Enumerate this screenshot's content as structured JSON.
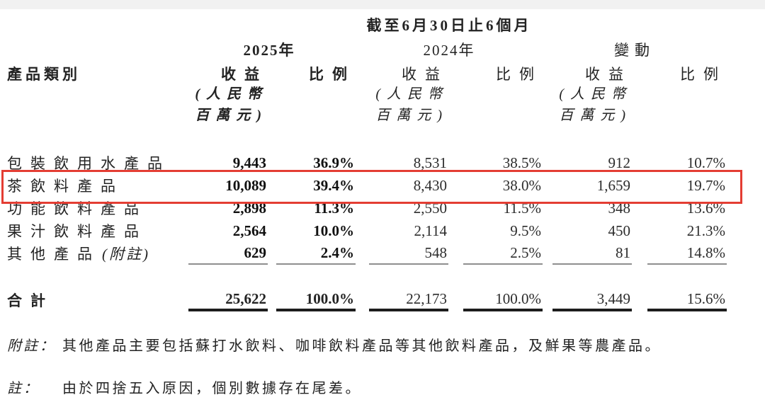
{
  "table": {
    "period_header": "截至6月30日止6個月",
    "product_category_header": "產品類別",
    "groups": {
      "y2025": "2025年",
      "y2024": "2024年",
      "change": "變動"
    },
    "revenue_header": "收益",
    "ratio_header": "比例",
    "currency_note_line1": "(人民幣",
    "currency_note_line2": "百萬元)",
    "rows": [
      {
        "label": "包裝飲用水產品",
        "values": [
          "9,443",
          "36.9%",
          "8,531",
          "38.5%",
          "912",
          "10.7%"
        ]
      },
      {
        "label": "茶飲料產品",
        "values": [
          "10,089",
          "39.4%",
          "8,430",
          "38.0%",
          "1,659",
          "19.7%"
        ],
        "highlighted": true
      },
      {
        "label": "功能飲料產品",
        "values": [
          "2,898",
          "11.3%",
          "2,550",
          "11.5%",
          "348",
          "13.6%"
        ]
      },
      {
        "label": "果汁飲料產品",
        "values": [
          "2,564",
          "10.0%",
          "2,114",
          "9.5%",
          "450",
          "21.3%"
        ]
      },
      {
        "label": "其他產品",
        "label_note": "(附註)",
        "values": [
          "629",
          "2.4%",
          "548",
          "2.5%",
          "81",
          "14.8%"
        ]
      }
    ],
    "total": {
      "label": "合計",
      "values": [
        "25,622",
        "100.0%",
        "22,173",
        "100.0%",
        "3,449",
        "15.6%"
      ]
    }
  },
  "notes": [
    {
      "term": "附註：",
      "text": "其他產品主要包括蘇打水飲料、咖啡飲料產品等其他飲料產品，及鮮果等農產品。"
    },
    {
      "term": "註：",
      "text": "由於四捨五入原因，個別數據存在尾差。"
    }
  ],
  "highlight": {
    "color": "#e43d33",
    "highlighted_row_label": "茶飲料產品"
  }
}
